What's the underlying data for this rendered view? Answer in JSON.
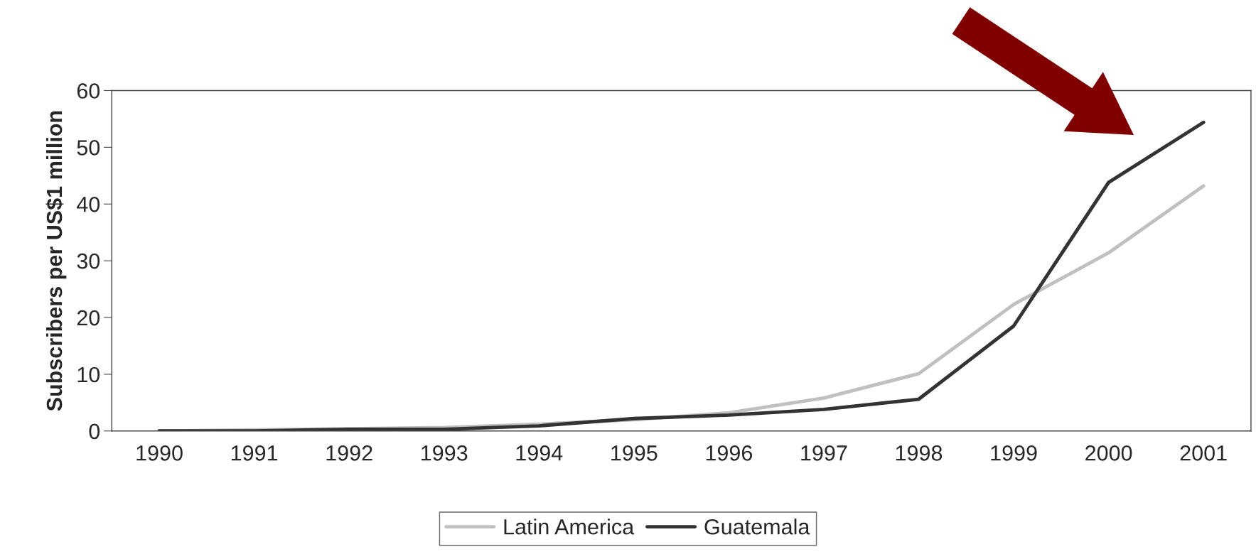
{
  "chart_data": {
    "type": "line",
    "ylabel": "Subscribers per US$1 million",
    "categories": [
      "1990",
      "1991",
      "1992",
      "1993",
      "1994",
      "1995",
      "1996",
      "1997",
      "1998",
      "1999",
      "2000",
      "2001"
    ],
    "series": [
      {
        "name": "Latin America",
        "color": "#c0c0c0",
        "values": [
          0,
          0.2,
          0.4,
          0.6,
          1.2,
          2.0,
          3.2,
          5.8,
          10.1,
          22.3,
          31.4,
          43.2
        ]
      },
      {
        "name": "Guatemala",
        "color": "#333333",
        "values": [
          0,
          0,
          0.3,
          0.3,
          0.9,
          2.2,
          2.8,
          3.8,
          5.6,
          18.5,
          43.8,
          54.4
        ]
      }
    ],
    "ylim": [
      0,
      60
    ],
    "yticks": [
      0,
      10,
      20,
      30,
      40,
      50,
      60
    ],
    "grid": false,
    "legend": "bottom",
    "marker": "none",
    "line_style": "solid"
  }
}
